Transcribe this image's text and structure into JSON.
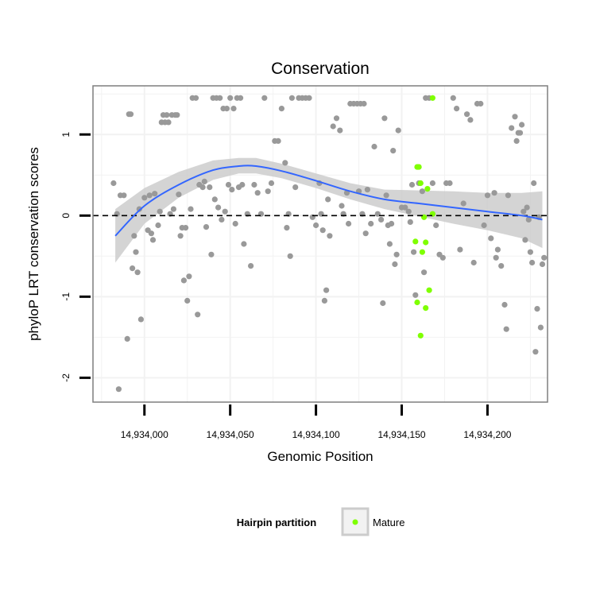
{
  "chart_data": {
    "type": "scatter",
    "title": "Conservation",
    "xlabel": "Genomic Position",
    "ylabel": "phyloP LRT conservation scores",
    "xlim": [
      14933970,
      14934235
    ],
    "ylim": [
      -2.3,
      1.6
    ],
    "x_ticks": [
      14934000,
      14934050,
      14934100,
      14934150,
      14934200
    ],
    "x_tick_labels": [
      "14,934,000",
      "14,934,050",
      "14,934,100",
      "14,934,150",
      "14,934,200"
    ],
    "y_ticks": [
      -2,
      -1,
      0,
      1
    ],
    "y_tick_labels": [
      "-2",
      "-1",
      "0",
      "1"
    ],
    "reference_line": {
      "y": 0,
      "style": "dashed",
      "color": "#000000"
    },
    "grid": true,
    "legend": {
      "title": "Hairpin partition",
      "placement": "bottom",
      "entries": [
        {
          "label": "Mature",
          "color": "#7fff00"
        }
      ]
    },
    "colors": {
      "background_points": "#999999",
      "mature_points": "#7fff00",
      "smooth_line": "#3366ff",
      "confidence_band": "#cccccc",
      "grid": "#f2f2f2"
    },
    "series": [
      {
        "role": "background",
        "color": "#999999",
        "points": [
          [
            14933982,
            0.4
          ],
          [
            14933984,
            0.02
          ],
          [
            14933986,
            0.25
          ],
          [
            14933988,
            0.25
          ],
          [
            14933990,
            -1.52
          ],
          [
            14933985,
            -2.14
          ],
          [
            14933991,
            1.25
          ],
          [
            14933992,
            1.25
          ],
          [
            14933993,
            -0.65
          ],
          [
            14933994,
            -0.25
          ],
          [
            14933995,
            -0.45
          ],
          [
            14933996,
            -0.7
          ],
          [
            14933997,
            0.08
          ],
          [
            14933998,
            -1.28
          ],
          [
            14934000,
            0.22
          ],
          [
            14934002,
            -0.18
          ],
          [
            14934003,
            0.25
          ],
          [
            14934004,
            -0.22
          ],
          [
            14934005,
            -0.3
          ],
          [
            14934006,
            0.27
          ],
          [
            14934008,
            -0.12
          ],
          [
            14934009,
            0.05
          ],
          [
            14934010,
            1.15
          ],
          [
            14934011,
            1.24
          ],
          [
            14934012,
            1.15
          ],
          [
            14934013,
            1.24
          ],
          [
            14934014,
            1.15
          ],
          [
            14934015,
            0.02
          ],
          [
            14934016,
            1.24
          ],
          [
            14934017,
            0.08
          ],
          [
            14934018,
            1.24
          ],
          [
            14934019,
            1.24
          ],
          [
            14934020,
            0.26
          ],
          [
            14934021,
            -0.25
          ],
          [
            14934022,
            -0.15
          ],
          [
            14934023,
            -0.8
          ],
          [
            14934024,
            -0.15
          ],
          [
            14934025,
            -1.05
          ],
          [
            14934026,
            -0.75
          ],
          [
            14934027,
            0.08
          ],
          [
            14934028,
            1.45
          ],
          [
            14934030,
            1.45
          ],
          [
            14934032,
            0.38
          ],
          [
            14934034,
            0.35
          ],
          [
            14934036,
            -0.14
          ],
          [
            14934031,
            -1.22
          ],
          [
            14934035,
            0.42
          ],
          [
            14934038,
            0.35
          ],
          [
            14934040,
            1.45
          ],
          [
            14934042,
            1.45
          ],
          [
            14934044,
            1.45
          ],
          [
            14934046,
            1.32
          ],
          [
            14934048,
            1.32
          ],
          [
            14934050,
            1.45
          ],
          [
            14934052,
            1.32
          ],
          [
            14934054,
            1.45
          ],
          [
            14934056,
            1.45
          ],
          [
            14934039,
            -0.48
          ],
          [
            14934041,
            0.2
          ],
          [
            14934043,
            0.1
          ],
          [
            14934045,
            -0.05
          ],
          [
            14934047,
            0.05
          ],
          [
            14934049,
            0.38
          ],
          [
            14934051,
            0.32
          ],
          [
            14934053,
            -0.1
          ],
          [
            14934055,
            0.35
          ],
          [
            14934057,
            0.38
          ],
          [
            14934058,
            -0.35
          ],
          [
            14934060,
            0.02
          ],
          [
            14934062,
            -0.62
          ],
          [
            14934064,
            0.38
          ],
          [
            14934066,
            0.28
          ],
          [
            14934068,
            0.02
          ],
          [
            14934070,
            1.45
          ],
          [
            14934072,
            0.3
          ],
          [
            14934074,
            0.4
          ],
          [
            14934076,
            0.92
          ],
          [
            14934078,
            0.92
          ],
          [
            14934080,
            1.32
          ],
          [
            14934082,
            0.65
          ],
          [
            14934083,
            -0.15
          ],
          [
            14934084,
            0.02
          ],
          [
            14934085,
            -0.5
          ],
          [
            14934086,
            1.45
          ],
          [
            14934088,
            0.35
          ],
          [
            14934090,
            1.45
          ],
          [
            14934092,
            1.45
          ],
          [
            14934094,
            1.45
          ],
          [
            14934096,
            1.45
          ],
          [
            14934098,
            -0.02
          ],
          [
            14934100,
            -0.12
          ],
          [
            14934102,
            0.4
          ],
          [
            14934103,
            0.02
          ],
          [
            14934104,
            -0.18
          ],
          [
            14934105,
            -1.05
          ],
          [
            14934106,
            -0.92
          ],
          [
            14934107,
            0.2
          ],
          [
            14934108,
            -0.25
          ],
          [
            14934110,
            1.1
          ],
          [
            14934112,
            1.2
          ],
          [
            14934114,
            1.05
          ],
          [
            14934115,
            0.12
          ],
          [
            14934116,
            0.02
          ],
          [
            14934118,
            0.28
          ],
          [
            14934119,
            -0.1
          ],
          [
            14934120,
            1.38
          ],
          [
            14934122,
            1.38
          ],
          [
            14934124,
            1.38
          ],
          [
            14934126,
            1.38
          ],
          [
            14934128,
            1.38
          ],
          [
            14934125,
            0.3
          ],
          [
            14934127,
            0.02
          ],
          [
            14934129,
            -0.22
          ],
          [
            14934130,
            0.32
          ],
          [
            14934132,
            -0.1
          ],
          [
            14934134,
            0.85
          ],
          [
            14934136,
            0.02
          ],
          [
            14934138,
            -0.05
          ],
          [
            14934139,
            -1.08
          ],
          [
            14934140,
            1.2
          ],
          [
            14934141,
            0.25
          ],
          [
            14934142,
            -0.12
          ],
          [
            14934143,
            -0.35
          ],
          [
            14934144,
            -0.1
          ],
          [
            14934145,
            0.8
          ],
          [
            14934146,
            -0.6
          ],
          [
            14934147,
            -0.48
          ],
          [
            14934148,
            1.05
          ],
          [
            14934150,
            0.1
          ],
          [
            14934152,
            0.1
          ],
          [
            14934154,
            0.05
          ],
          [
            14934155,
            -0.08
          ],
          [
            14934156,
            0.38
          ],
          [
            14934157,
            -0.45
          ],
          [
            14934158,
            -0.98
          ],
          [
            14934160,
            0.4
          ],
          [
            14934162,
            0.3
          ],
          [
            14934163,
            -0.7
          ],
          [
            14934164,
            1.45
          ],
          [
            14934166,
            1.45
          ],
          [
            14934168,
            0.4
          ],
          [
            14934170,
            -0.12
          ],
          [
            14934172,
            -0.48
          ],
          [
            14934174,
            -0.52
          ],
          [
            14934176,
            0.4
          ],
          [
            14934178,
            0.4
          ],
          [
            14934180,
            1.45
          ],
          [
            14934182,
            1.32
          ],
          [
            14934184,
            -0.42
          ],
          [
            14934186,
            0.15
          ],
          [
            14934188,
            1.25
          ],
          [
            14934190,
            1.18
          ],
          [
            14934192,
            -0.58
          ],
          [
            14934194,
            1.38
          ],
          [
            14934196,
            1.38
          ],
          [
            14934198,
            -0.12
          ],
          [
            14934200,
            0.25
          ],
          [
            14934202,
            -0.28
          ],
          [
            14934204,
            0.28
          ],
          [
            14934205,
            -0.52
          ],
          [
            14934206,
            -0.42
          ],
          [
            14934208,
            -0.62
          ],
          [
            14934210,
            -1.1
          ],
          [
            14934211,
            -1.4
          ],
          [
            14934212,
            0.25
          ],
          [
            14934214,
            1.08
          ],
          [
            14934216,
            1.22
          ],
          [
            14934217,
            0.92
          ],
          [
            14934218,
            1.02
          ],
          [
            14934219,
            1.02
          ],
          [
            14934220,
            1.12
          ],
          [
            14934221,
            0.05
          ],
          [
            14934222,
            -0.3
          ],
          [
            14934223,
            0.1
          ],
          [
            14934224,
            -0.05
          ],
          [
            14934225,
            -0.45
          ],
          [
            14934226,
            -0.58
          ],
          [
            14934227,
            0.4
          ],
          [
            14934228,
            -1.68
          ],
          [
            14934229,
            -1.15
          ],
          [
            14934230,
            -0.02
          ],
          [
            14934231,
            -1.38
          ],
          [
            14934232,
            -0.6
          ],
          [
            14934233,
            -0.52
          ]
        ]
      },
      {
        "role": "mature",
        "name": "Mature",
        "color": "#7fff00",
        "points": [
          [
            14934159,
            0.6
          ],
          [
            14934160,
            0.6
          ],
          [
            14934161,
            0.4
          ],
          [
            14934163,
            -0.02
          ],
          [
            14934165,
            0.33
          ],
          [
            14934158,
            -0.32
          ],
          [
            14934162,
            -0.45
          ],
          [
            14934164,
            -0.33
          ],
          [
            14934166,
            -0.92
          ],
          [
            14934159,
            -1.07
          ],
          [
            14934164,
            -1.14
          ],
          [
            14934161,
            -1.48
          ],
          [
            14934168,
            0.02
          ],
          [
            14934168,
            1.45
          ]
        ]
      }
    ],
    "smooth": {
      "x": [
        14933983,
        14934000,
        14934020,
        14934040,
        14934055,
        14934065,
        14934080,
        14934100,
        14934120,
        14934140,
        14934160,
        14934180,
        14934200,
        14934220,
        14934232
      ],
      "y": [
        -0.25,
        0.12,
        0.38,
        0.56,
        0.61,
        0.61,
        0.55,
        0.43,
        0.3,
        0.2,
        0.15,
        0.1,
        0.05,
        0.0,
        -0.05
      ],
      "lower": [
        -0.58,
        -0.1,
        0.22,
        0.44,
        0.52,
        0.52,
        0.46,
        0.34,
        0.2,
        0.08,
        -0.01,
        -0.1,
        -0.18,
        -0.28,
        -0.4
      ],
      "upper": [
        0.08,
        0.34,
        0.54,
        0.68,
        0.71,
        0.71,
        0.64,
        0.52,
        0.4,
        0.32,
        0.31,
        0.3,
        0.28,
        0.28,
        0.3
      ]
    }
  }
}
